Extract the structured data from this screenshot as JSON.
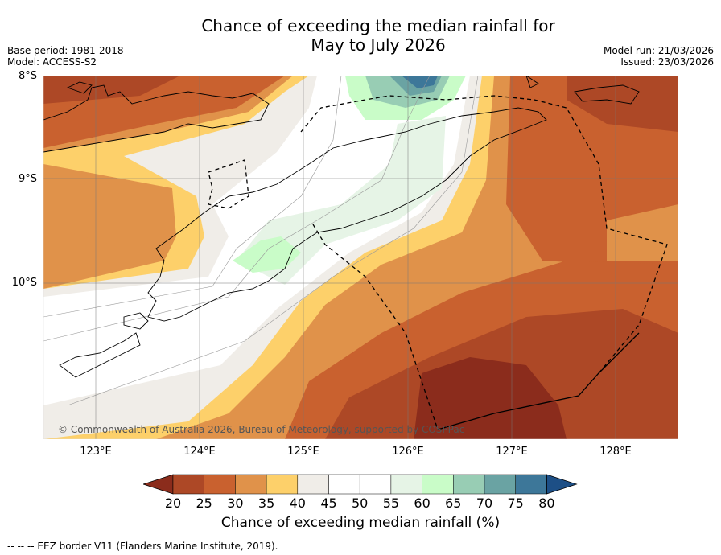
{
  "title": {
    "line1": "Chance of exceeding the median rainfall for",
    "line2": "May to July 2026"
  },
  "meta_left": {
    "base_period": "Base period: 1981-2018",
    "model": "Model: ACCESS-S2"
  },
  "meta_right": {
    "model_run": "Model run: 21/03/2026",
    "issued": "Issued: 23/03/2026"
  },
  "map": {
    "lat_labels": [
      "8°S",
      "9°S",
      "10°S"
    ],
    "lon_labels": [
      "123°E",
      "124°E",
      "125°E",
      "126°E",
      "127°E",
      "128°E"
    ],
    "copyright": "© Commonwealth of Australia 2026, Bureau of Meteorology, supported by COSPPac"
  },
  "colorbar": {
    "ticks": [
      "20",
      "25",
      "30",
      "35",
      "40",
      "45",
      "50",
      "55",
      "60",
      "65",
      "70",
      "75",
      "80"
    ],
    "colors": [
      "#8b2c1c",
      "#ad4826",
      "#c9612f",
      "#e0924a",
      "#fdd06a",
      "#f0ede8",
      "#ffffff",
      "#ffffff",
      "#e6f4e6",
      "#c9fcc8",
      "#98cdb4",
      "#6aa3a3",
      "#3d7799",
      "#1d4f86"
    ],
    "label": "Chance of exceeding median rainfall (%)"
  },
  "footer": {
    "legend": "--  --  -- EEZ border V11 (Flanders Marine Institute, 2019)."
  }
}
